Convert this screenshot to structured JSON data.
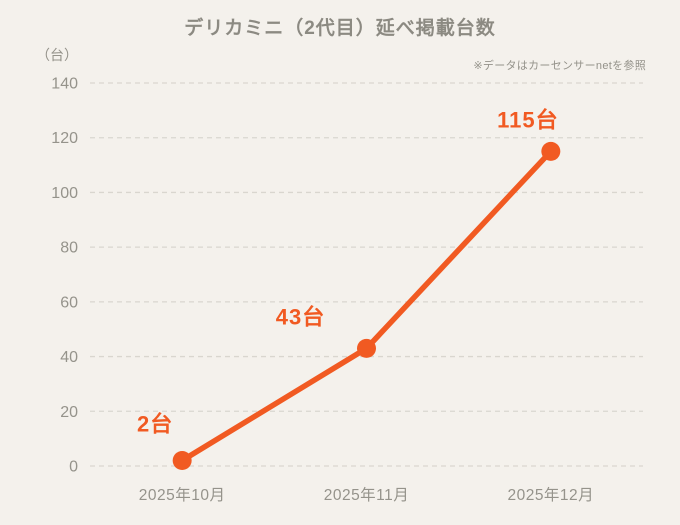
{
  "header": {
    "title": "デリカミニ（2代目）延べ掲載台数",
    "unit_label": "（台）",
    "source_note": "※データはカーセンサーnetを参照"
  },
  "colors": {
    "background": "#f4f1ec",
    "line": "#f15a22",
    "point": "#f15a22",
    "data_label": "#f15a22",
    "grid": "#d9d6cf",
    "text_gray": "#8c8a82",
    "tick_gray": "#95938b"
  },
  "chart_data": {
    "type": "line",
    "title": "デリカミニ（2代目）延べ掲載台数",
    "categories": [
      "2025年10月",
      "2025年11月",
      "2025年12月"
    ],
    "values": [
      2,
      43,
      115
    ],
    "data_labels": [
      "2台",
      "43台",
      "115台"
    ],
    "xlabel": "",
    "ylabel": "（台）",
    "yticks": [
      0,
      20,
      40,
      60,
      80,
      100,
      120,
      140
    ],
    "ylim": [
      0,
      140
    ],
    "grid": true,
    "grid_style": "dashed",
    "legend": false,
    "source_note": "※データはカーセンサーnetを参照"
  }
}
